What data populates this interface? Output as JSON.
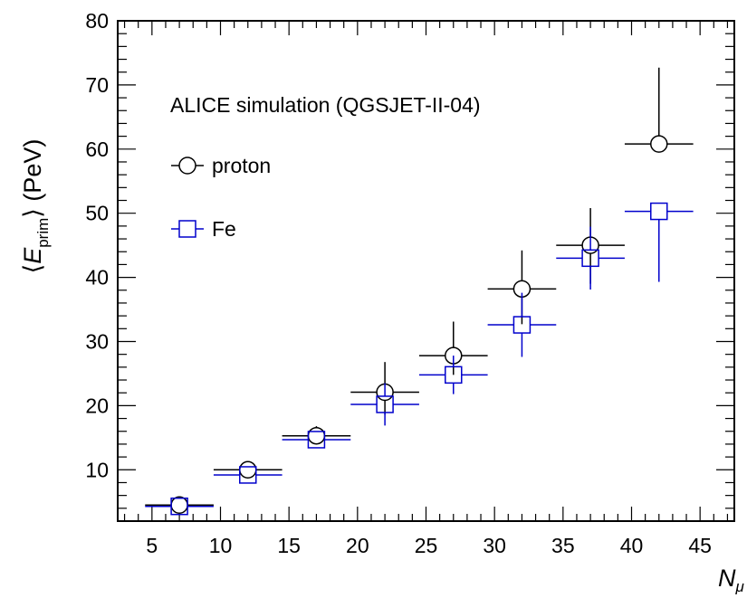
{
  "chart_data": {
    "type": "scatter",
    "annotation": "ALICE simulation (QGSJET-II-04)",
    "xlabel": {
      "main": "N",
      "sub": "μ"
    },
    "ylabel": {
      "prefix": "⟨",
      "main": "E",
      "sub": "prim",
      "suffix": "⟩ (PeV)"
    },
    "xlim": [
      2.5,
      47.5
    ],
    "ylim": [
      2,
      80
    ],
    "xticks": [
      5,
      10,
      15,
      20,
      25,
      30,
      35,
      40,
      45
    ],
    "yticks": [
      10,
      20,
      30,
      40,
      50,
      60,
      70,
      80
    ],
    "legend_position": "top-left",
    "series": [
      {
        "name": "proton",
        "marker": "open-circle",
        "color": "#000000",
        "x": [
          7,
          12,
          17,
          22,
          27,
          32,
          37,
          42
        ],
        "y": [
          4.5,
          10.0,
          15.3,
          22.1,
          27.8,
          38.2,
          45.0,
          60.8
        ],
        "xerr": [
          2.5,
          2.5,
          2.5,
          2.5,
          2.5,
          2.5,
          2.5,
          2.5
        ],
        "yerr_low": [
          0.8,
          0.9,
          0.6,
          3.5,
          3.0,
          5.5,
          6.0,
          0.0
        ],
        "yerr_high": [
          0.8,
          0.9,
          1.5,
          4.7,
          5.3,
          6.0,
          5.8,
          11.9
        ]
      },
      {
        "name": "Fe",
        "marker": "open-square",
        "color": "#0000cc",
        "x": [
          7,
          12,
          17,
          22,
          27,
          32,
          37,
          42
        ],
        "y": [
          4.3,
          9.2,
          14.7,
          20.2,
          24.8,
          32.6,
          43.0,
          50.3
        ],
        "xerr": [
          2.5,
          2.5,
          2.5,
          2.5,
          2.5,
          2.5,
          2.5,
          2.5
        ],
        "yerr_low": [
          0.4,
          0.5,
          0.6,
          3.3,
          3.0,
          5.0,
          4.9,
          11.0
        ],
        "yerr_high": [
          0.4,
          0.5,
          0.6,
          3.3,
          3.0,
          5.0,
          4.9,
          0.0
        ]
      }
    ]
  }
}
